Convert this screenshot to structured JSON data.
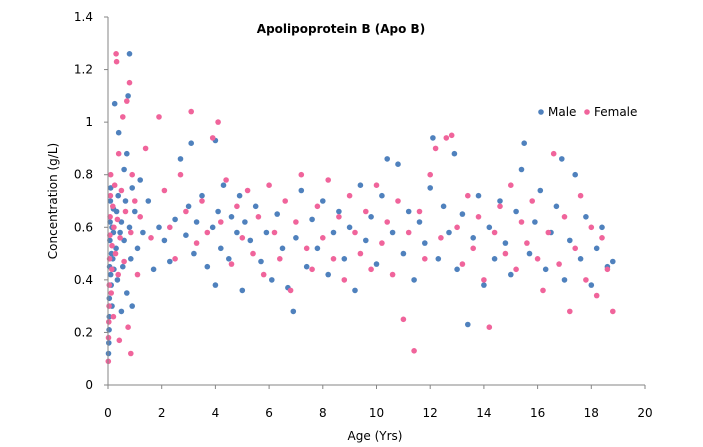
{
  "chart_data": {
    "type": "scatter",
    "title": "Apolipoprotein B (Apo B)",
    "xlabel": "Age (Yrs)",
    "ylabel": "Concentration (g/L)",
    "xlim": [
      0,
      20
    ],
    "ylim": [
      0,
      1.4
    ],
    "xticks": [
      "0",
      "2",
      "4",
      "6",
      "8",
      "10",
      "12",
      "14",
      "16",
      "18",
      "20"
    ],
    "yticks": [
      "0",
      "0.2",
      "0.4",
      "0.6",
      "0.8",
      "1",
      "1.2",
      "1.4"
    ],
    "grid": false,
    "legend_position": "right",
    "series": [
      {
        "name": "Male",
        "color": "#4F81BD",
        "points": [
          [
            0.02,
            0.12
          ],
          [
            0.03,
            0.16
          ],
          [
            0.04,
            0.21
          ],
          [
            0.05,
            0.26
          ],
          [
            0.05,
            0.33
          ],
          [
            0.06,
            0.45
          ],
          [
            0.07,
            0.55
          ],
          [
            0.08,
            0.62
          ],
          [
            0.09,
            0.7
          ],
          [
            0.1,
            0.75
          ],
          [
            0.1,
            0.42
          ],
          [
            0.12,
            0.38
          ],
          [
            0.13,
            0.5
          ],
          [
            0.15,
            0.6
          ],
          [
            0.15,
            0.3
          ],
          [
            0.18,
            0.48
          ],
          [
            0.2,
            0.58
          ],
          [
            0.2,
            0.67
          ],
          [
            0.22,
            0.44
          ],
          [
            0.25,
            1.07
          ],
          [
            0.3,
            0.52
          ],
          [
            0.32,
            0.66
          ],
          [
            0.35,
            0.4
          ],
          [
            0.38,
            0.72
          ],
          [
            0.4,
            0.96
          ],
          [
            0.45,
            0.58
          ],
          [
            0.5,
            0.28
          ],
          [
            0.5,
            0.62
          ],
          [
            0.55,
            0.45
          ],
          [
            0.6,
            0.82
          ],
          [
            0.6,
            0.55
          ],
          [
            0.65,
            0.7
          ],
          [
            0.7,
            0.35
          ],
          [
            0.7,
            0.88
          ],
          [
            0.75,
            1.1
          ],
          [
            0.8,
            1.26
          ],
          [
            0.8,
            0.6
          ],
          [
            0.85,
            0.48
          ],
          [
            0.9,
            0.75
          ],
          [
            0.9,
            0.3
          ],
          [
            1.0,
            0.66
          ],
          [
            1.1,
            0.52
          ],
          [
            1.2,
            0.78
          ],
          [
            1.3,
            0.58
          ],
          [
            1.5,
            0.7
          ],
          [
            1.7,
            0.44
          ],
          [
            1.9,
            0.6
          ],
          [
            2.1,
            0.55
          ],
          [
            2.3,
            0.47
          ],
          [
            2.5,
            0.63
          ],
          [
            2.7,
            0.86
          ],
          [
            2.9,
            0.57
          ],
          [
            3.0,
            0.68
          ],
          [
            3.1,
            0.92
          ],
          [
            3.2,
            0.5
          ],
          [
            3.3,
            0.62
          ],
          [
            3.5,
            0.72
          ],
          [
            3.7,
            0.45
          ],
          [
            3.9,
            0.6
          ],
          [
            4.0,
            0.93
          ],
          [
            4.0,
            0.38
          ],
          [
            4.1,
            0.66
          ],
          [
            4.2,
            0.52
          ],
          [
            4.3,
            0.76
          ],
          [
            4.5,
            0.48
          ],
          [
            4.6,
            0.64
          ],
          [
            4.8,
            0.58
          ],
          [
            4.9,
            0.72
          ],
          [
            5.0,
            0.36
          ],
          [
            5.1,
            0.62
          ],
          [
            5.3,
            0.55
          ],
          [
            5.5,
            0.68
          ],
          [
            5.7,
            0.47
          ],
          [
            5.9,
            0.58
          ],
          [
            6.1,
            0.4
          ],
          [
            6.3,
            0.65
          ],
          [
            6.5,
            0.52
          ],
          [
            6.7,
            0.37
          ],
          [
            6.9,
            0.28
          ],
          [
            7.0,
            0.56
          ],
          [
            7.2,
            0.74
          ],
          [
            7.4,
            0.45
          ],
          [
            7.6,
            0.63
          ],
          [
            7.8,
            0.52
          ],
          [
            8.0,
            0.7
          ],
          [
            8.2,
            0.42
          ],
          [
            8.4,
            0.58
          ],
          [
            8.6,
            0.66
          ],
          [
            8.8,
            0.48
          ],
          [
            9.0,
            0.6
          ],
          [
            9.2,
            0.36
          ],
          [
            9.4,
            0.76
          ],
          [
            9.6,
            0.55
          ],
          [
            9.8,
            0.64
          ],
          [
            10.0,
            0.46
          ],
          [
            10.2,
            0.72
          ],
          [
            10.4,
            0.86
          ],
          [
            10.6,
            0.58
          ],
          [
            10.8,
            0.84
          ],
          [
            11.0,
            0.5
          ],
          [
            11.2,
            0.66
          ],
          [
            11.4,
            0.4
          ],
          [
            11.6,
            0.62
          ],
          [
            11.8,
            0.54
          ],
          [
            12.0,
            0.75
          ],
          [
            12.1,
            0.94
          ],
          [
            12.3,
            0.48
          ],
          [
            12.5,
            0.68
          ],
          [
            12.7,
            0.58
          ],
          [
            12.9,
            0.88
          ],
          [
            13.0,
            0.44
          ],
          [
            13.2,
            0.65
          ],
          [
            13.4,
            0.23
          ],
          [
            13.6,
            0.56
          ],
          [
            13.8,
            0.72
          ],
          [
            14.0,
            0.38
          ],
          [
            14.2,
            0.6
          ],
          [
            14.4,
            0.48
          ],
          [
            14.6,
            0.7
          ],
          [
            14.8,
            0.54
          ],
          [
            15.0,
            0.42
          ],
          [
            15.2,
            0.66
          ],
          [
            15.4,
            0.82
          ],
          [
            15.5,
            0.92
          ],
          [
            15.7,
            0.5
          ],
          [
            15.9,
            0.62
          ],
          [
            16.1,
            0.74
          ],
          [
            16.3,
            0.44
          ],
          [
            16.5,
            0.58
          ],
          [
            16.7,
            0.68
          ],
          [
            16.9,
            0.86
          ],
          [
            17.0,
            0.4
          ],
          [
            17.2,
            0.55
          ],
          [
            17.4,
            0.8
          ],
          [
            17.6,
            0.48
          ],
          [
            17.8,
            0.64
          ],
          [
            18.0,
            0.38
          ],
          [
            18.2,
            0.52
          ],
          [
            18.4,
            0.6
          ],
          [
            18.6,
            0.45
          ],
          [
            18.8,
            0.47
          ]
        ]
      },
      {
        "name": "Female",
        "color": "#F0649B",
        "points": [
          [
            0.01,
            0.09
          ],
          [
            0.02,
            0.18
          ],
          [
            0.03,
            0.24
          ],
          [
            0.04,
            0.3
          ],
          [
            0.05,
            0.38
          ],
          [
            0.06,
            0.48
          ],
          [
            0.07,
            0.57
          ],
          [
            0.08,
            0.64
          ],
          [
            0.09,
            0.72
          ],
          [
            0.1,
            0.8
          ],
          [
            0.12,
            0.35
          ],
          [
            0.14,
            0.44
          ],
          [
            0.15,
            0.53
          ],
          [
            0.18,
            0.68
          ],
          [
            0.2,
            0.26
          ],
          [
            0.22,
            0.6
          ],
          [
            0.25,
            0.76
          ],
          [
            0.28,
            0.5
          ],
          [
            0.3,
            1.26
          ],
          [
            0.32,
            1.23
          ],
          [
            0.35,
            0.63
          ],
          [
            0.38,
            0.42
          ],
          [
            0.4,
            0.88
          ],
          [
            0.42,
            0.17
          ],
          [
            0.45,
            0.56
          ],
          [
            0.5,
            0.74
          ],
          [
            0.55,
            1.02
          ],
          [
            0.6,
            0.47
          ],
          [
            0.65,
            0.66
          ],
          [
            0.7,
            1.08
          ],
          [
            0.75,
            0.22
          ],
          [
            0.8,
            1.15
          ],
          [
            0.85,
            0.58
          ],
          [
            0.85,
            0.12
          ],
          [
            0.9,
            0.8
          ],
          [
            1.0,
            0.7
          ],
          [
            1.1,
            0.42
          ],
          [
            1.2,
            0.64
          ],
          [
            1.4,
            0.9
          ],
          [
            1.6,
            0.56
          ],
          [
            1.9,
            1.02
          ],
          [
            2.1,
            0.74
          ],
          [
            2.3,
            0.6
          ],
          [
            2.5,
            0.48
          ],
          [
            2.7,
            0.8
          ],
          [
            2.9,
            0.66
          ],
          [
            3.1,
            1.04
          ],
          [
            3.3,
            0.54
          ],
          [
            3.5,
            0.7
          ],
          [
            3.7,
            0.58
          ],
          [
            3.9,
            0.94
          ],
          [
            4.1,
            1.0
          ],
          [
            4.2,
            0.62
          ],
          [
            4.4,
            0.78
          ],
          [
            4.6,
            0.46
          ],
          [
            4.8,
            0.68
          ],
          [
            5.0,
            0.56
          ],
          [
            5.2,
            0.74
          ],
          [
            5.4,
            0.5
          ],
          [
            5.6,
            0.64
          ],
          [
            5.8,
            0.42
          ],
          [
            6.0,
            0.76
          ],
          [
            6.2,
            0.58
          ],
          [
            6.4,
            0.48
          ],
          [
            6.6,
            0.7
          ],
          [
            6.8,
            0.36
          ],
          [
            7.0,
            0.62
          ],
          [
            7.2,
            0.8
          ],
          [
            7.4,
            0.52
          ],
          [
            7.6,
            0.44
          ],
          [
            7.8,
            0.68
          ],
          [
            8.0,
            0.56
          ],
          [
            8.2,
            0.78
          ],
          [
            8.4,
            0.48
          ],
          [
            8.6,
            0.64
          ],
          [
            8.8,
            0.4
          ],
          [
            9.0,
            0.72
          ],
          [
            9.2,
            0.58
          ],
          [
            9.4,
            0.5
          ],
          [
            9.6,
            0.66
          ],
          [
            9.8,
            0.44
          ],
          [
            10.0,
            0.76
          ],
          [
            10.2,
            0.54
          ],
          [
            10.4,
            0.62
          ],
          [
            10.6,
            0.42
          ],
          [
            10.8,
            0.7
          ],
          [
            11.0,
            0.25
          ],
          [
            11.2,
            0.58
          ],
          [
            11.4,
            0.13
          ],
          [
            11.6,
            0.66
          ],
          [
            11.8,
            0.48
          ],
          [
            12.0,
            0.8
          ],
          [
            12.2,
            0.9
          ],
          [
            12.4,
            0.56
          ],
          [
            12.6,
            0.94
          ],
          [
            12.8,
            0.95
          ],
          [
            13.0,
            0.6
          ],
          [
            13.2,
            0.46
          ],
          [
            13.4,
            0.72
          ],
          [
            13.6,
            0.52
          ],
          [
            13.8,
            0.64
          ],
          [
            14.0,
            0.4
          ],
          [
            14.2,
            0.22
          ],
          [
            14.4,
            0.58
          ],
          [
            14.6,
            0.68
          ],
          [
            14.8,
            0.5
          ],
          [
            15.0,
            0.76
          ],
          [
            15.2,
            0.44
          ],
          [
            15.4,
            0.62
          ],
          [
            15.6,
            0.54
          ],
          [
            15.8,
            0.7
          ],
          [
            16.0,
            0.48
          ],
          [
            16.2,
            0.36
          ],
          [
            16.4,
            0.58
          ],
          [
            16.6,
            0.88
          ],
          [
            16.8,
            0.46
          ],
          [
            17.0,
            0.64
          ],
          [
            17.2,
            0.28
          ],
          [
            17.4,
            0.52
          ],
          [
            17.6,
            0.72
          ],
          [
            17.8,
            0.4
          ],
          [
            18.0,
            0.6
          ],
          [
            18.2,
            0.34
          ],
          [
            18.4,
            0.56
          ],
          [
            18.6,
            0.44
          ],
          [
            18.8,
            0.28
          ]
        ]
      }
    ]
  }
}
